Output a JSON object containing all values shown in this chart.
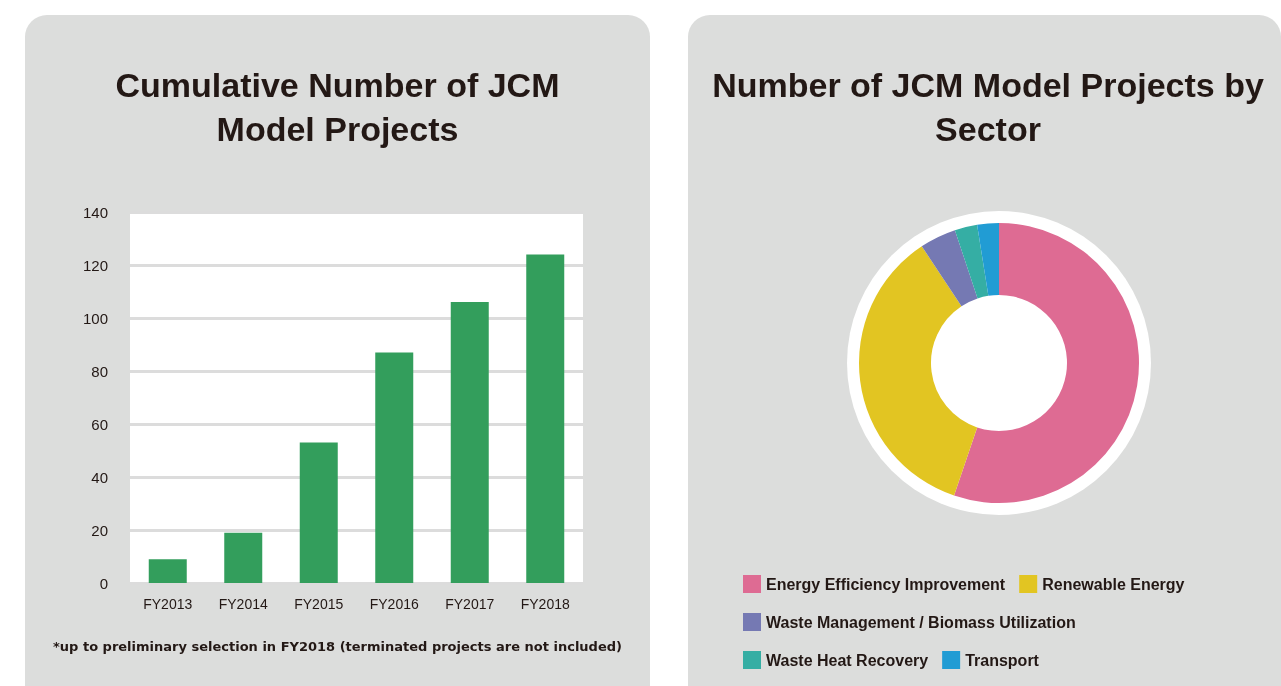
{
  "chart_data": [
    {
      "type": "bar",
      "title": "Cumulative Number of JCM Model Projects",
      "categories": [
        "FY2013",
        "FY2014",
        "FY2015",
        "FY2016",
        "FY2017",
        "FY2018"
      ],
      "values": [
        9,
        19,
        53,
        87,
        106,
        124
      ],
      "color": "#339e5c",
      "ylim": [
        0,
        140
      ],
      "yticks": [
        0,
        20,
        40,
        60,
        80,
        100,
        120,
        140
      ],
      "grid": "y",
      "legend": false,
      "annotations": [
        "*up to preliminary selection in FY2018 (terminated projects are not included)"
      ]
    },
    {
      "type": "donut",
      "title": "Number of JCM Model Projects by Sector",
      "categories": [
        "Energy Efficiency Improvement",
        "Renewable Energy",
        "Waste Management / Biomass Utilization",
        "Waste Heat Recovery",
        "Transport"
      ],
      "values": [
        55.2,
        35.5,
        4.2,
        2.6,
        2.5
      ],
      "colors": [
        "#de6b93",
        "#e2c522",
        "#7579b3",
        "#35aea4",
        "#219cd4"
      ],
      "legend": "bottom"
    }
  ]
}
